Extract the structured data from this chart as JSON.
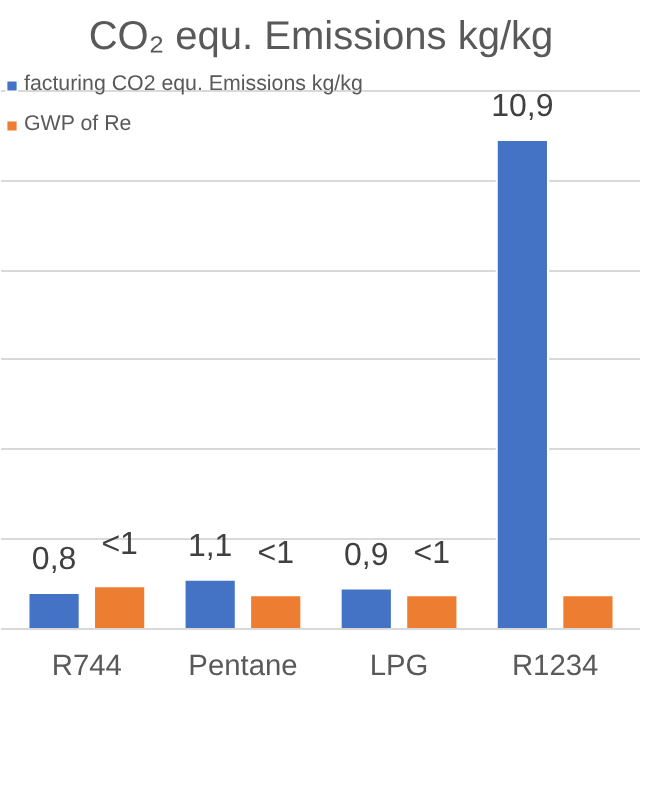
{
  "chart_data": {
    "type": "bar",
    "title": "CO₂ equ. Emissions kg/kg",
    "categories": [
      "R744",
      "Pentane",
      "LPG",
      "R1234"
    ],
    "series": [
      {
        "name": "facturing CO2 equ. Emissions kg/kg",
        "color": "#4472c4",
        "values": [
          0.8,
          1.1,
          0.9,
          10.9
        ],
        "value_labels": [
          "0,8",
          "1,1",
          "0,9",
          "10,9"
        ]
      },
      {
        "name": "GWP of Re",
        "color": "#ed7d31",
        "values": [
          0.95,
          0.75,
          0.75,
          0.75
        ],
        "value_labels": [
          "<1",
          "<1",
          "<1",
          null
        ]
      }
    ],
    "ylim": [
      0,
      12
    ],
    "yticks": [
      {
        "value": 0,
        "label": null
      },
      {
        "value": 2,
        "label": null
      },
      {
        "value": 4,
        "label": null
      },
      {
        "value": 6,
        "label": null
      },
      {
        "value": 8,
        "label": null
      },
      {
        "value": 10,
        "label": null
      },
      {
        "value": 12,
        "label": null
      }
    ],
    "grid": "y",
    "legend": "top left",
    "tick_labels": "x"
  }
}
